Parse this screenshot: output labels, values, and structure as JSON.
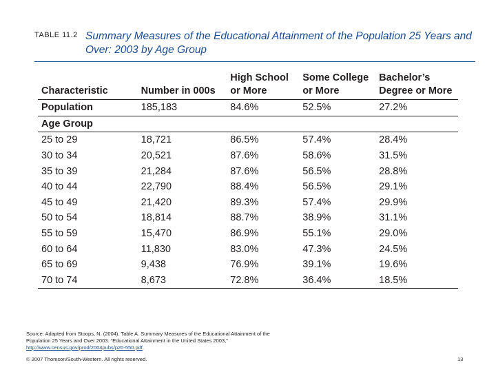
{
  "table_label": "TABLE 11.2",
  "title": "Summary Measures of the Educational Attainment of the Population 25 Years and Over: 2003 by Age Group",
  "table": {
    "headers": [
      "Characteristic",
      "Number in 000s",
      "High School or More",
      "Some College or More",
      "Bachelor’s Degree or More"
    ],
    "population_row": [
      "Population",
      "185,183",
      "84.6%",
      "52.5%",
      "27.2%"
    ],
    "group_heading": "Age Group",
    "rows": [
      [
        "25 to 29",
        "18,721",
        "86.5%",
        "57.4%",
        "28.4%"
      ],
      [
        "30 to 34",
        "20,521",
        "87.6%",
        "58.6%",
        "31.5%"
      ],
      [
        "35 to 39",
        "21,284",
        "87.6%",
        "56.5%",
        "28.8%"
      ],
      [
        "40 to 44",
        "22,790",
        "88.4%",
        "56.5%",
        "29.1%"
      ],
      [
        "45 to 49",
        "21,420",
        "89.3%",
        "57.4%",
        "29.9%"
      ],
      [
        "50 to 54",
        "18,814",
        "88.7%",
        "38.9%",
        "31.1%"
      ],
      [
        "55 to 59",
        "15,470",
        "86.9%",
        "55.1%",
        "29.0%"
      ],
      [
        "60 to 64",
        "11,830",
        "83.0%",
        "47.3%",
        "24.5%"
      ],
      [
        "65 to 69",
        "9,438",
        "76.9%",
        "39.1%",
        "19.6%"
      ],
      [
        "70 to 74",
        "8,673",
        "72.8%",
        "36.4%",
        "18.5%"
      ]
    ]
  },
  "source": {
    "text": "Source: Adapted from Stoops, N. (2004). Table A. Summary Measures of the Educational Attainment of the Population 25 Years and Over 2003. “Educational Attainment in the United States 2003,” ",
    "link": "http://www.census.gov/prod/2004pubs/p20-550.pdf",
    "end": "."
  },
  "copyright": "© 2007 Thomson/South-Western. All rights reserved.",
  "page_number": "13"
}
